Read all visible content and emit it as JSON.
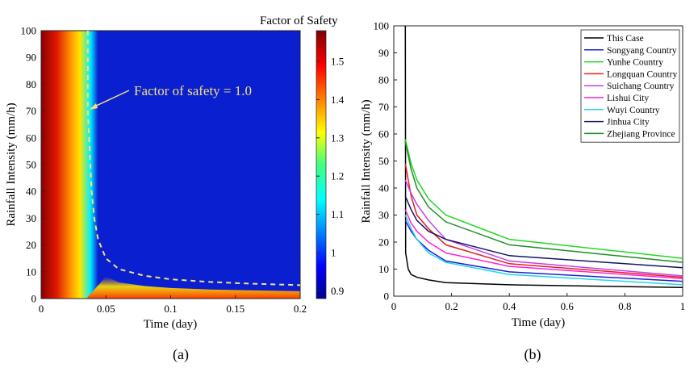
{
  "chart_data": [
    {
      "type": "heatmap",
      "panel_label": "(a)",
      "xlabel": "Time (day)",
      "ylabel": "Rainfall Intensity (mm/h)",
      "xlim": [
        0,
        0.2
      ],
      "ylim": [
        0,
        100
      ],
      "xticks": [
        0,
        0.05,
        0.1,
        0.15,
        0.2
      ],
      "xtick_labels": [
        "0",
        "0.05",
        "0.1",
        "0.15",
        "0.2"
      ],
      "yticks": [
        0,
        10,
        20,
        30,
        40,
        50,
        60,
        70,
        80,
        90,
        100
      ],
      "colorbar": {
        "title": "Factor of Safety",
        "range": [
          0.88,
          1.58
        ],
        "ticks": [
          0.9,
          1,
          1.1,
          1.2,
          1.3,
          1.4,
          1.5
        ],
        "tick_labels": [
          "0.9",
          "1",
          "1.1",
          "1.2",
          "1.3",
          "1.4",
          "1.5"
        ],
        "colormap": "jet"
      },
      "fs1_contour": {
        "label": "Factor of safety = 1.0",
        "style": "dashed",
        "color": "#f2e27a",
        "x": [
          0.036,
          0.036,
          0.036,
          0.036,
          0.037,
          0.038,
          0.039,
          0.041,
          0.044,
          0.05,
          0.06,
          0.08,
          0.1,
          0.13,
          0.16,
          0.2
        ],
        "y": [
          100,
          90,
          80,
          70,
          60,
          50,
          40,
          30,
          22,
          15,
          11,
          8.5,
          7.2,
          6.2,
          5.6,
          5.0
        ]
      }
    },
    {
      "type": "line",
      "panel_label": "(b)",
      "xlabel": "Time (day)",
      "ylabel": "Rainfall Intensity (mm/h)",
      "xlim": [
        0,
        1
      ],
      "ylim": [
        0,
        100
      ],
      "xticks": [
        0,
        0.2,
        0.4,
        0.6,
        0.8,
        1
      ],
      "xtick_labels": [
        "0",
        "0.2",
        "0.4",
        "0.6",
        "0.8",
        "1"
      ],
      "yticks": [
        0,
        10,
        20,
        30,
        40,
        50,
        60,
        70,
        80,
        90,
        100
      ],
      "legend_position": "top-right",
      "series": [
        {
          "name": "This Case",
          "color": "#000000",
          "x": [
            0.04,
            0.041,
            0.05,
            0.06,
            0.08,
            0.12,
            0.18,
            0.4,
            1.0
          ],
          "y": [
            100,
            16,
            10,
            8,
            7,
            6,
            5,
            4.2,
            3.2
          ]
        },
        {
          "name": "Songyang Country",
          "color": "#1f1fd6",
          "x": [
            0.04,
            0.06,
            0.08,
            0.12,
            0.18,
            0.4,
            1.0
          ],
          "y": [
            28,
            24,
            21,
            17,
            13,
            9,
            5.5
          ]
        },
        {
          "name": "Yunhe Country",
          "color": "#22d822",
          "x": [
            0.04,
            0.06,
            0.08,
            0.12,
            0.18,
            0.4,
            1.0
          ],
          "y": [
            58,
            49,
            43,
            36,
            30,
            21,
            14
          ]
        },
        {
          "name": "Longquan Country",
          "color": "#e61e1e",
          "x": [
            0.04,
            0.06,
            0.08,
            0.12,
            0.18,
            0.4,
            1.0
          ],
          "y": [
            49,
            37,
            30,
            25,
            19,
            12,
            7
          ]
        },
        {
          "name": "Suichang Country",
          "color": "#c040e8",
          "x": [
            0.04,
            0.06,
            0.08,
            0.12,
            0.18,
            0.4,
            1.0
          ],
          "y": [
            43,
            38,
            34,
            28,
            21,
            13,
            7.5
          ]
        },
        {
          "name": "Lishui City",
          "color": "#ff22d8",
          "x": [
            0.04,
            0.06,
            0.08,
            0.12,
            0.18,
            0.4,
            1.0
          ],
          "y": [
            32,
            27,
            24,
            20,
            16,
            11,
            6.5
          ]
        },
        {
          "name": "Wuyi Country",
          "color": "#22d8e8",
          "x": [
            0.04,
            0.06,
            0.08,
            0.12,
            0.18,
            0.4,
            1.0
          ],
          "y": [
            30,
            25,
            21,
            16,
            12.5,
            8,
            4.2
          ]
        },
        {
          "name": "Jinhua City",
          "color": "#141466",
          "x": [
            0.04,
            0.06,
            0.08,
            0.12,
            0.18,
            0.4,
            1.0
          ],
          "y": [
            37,
            32,
            28,
            24,
            21,
            15,
            10.5
          ]
        },
        {
          "name": "Zhejiang Province",
          "color": "#1e8c28",
          "x": [
            0.04,
            0.06,
            0.08,
            0.12,
            0.18,
            0.4,
            1.0
          ],
          "y": [
            57,
            47,
            40,
            33,
            27.5,
            19,
            12.5
          ]
        }
      ]
    }
  ]
}
